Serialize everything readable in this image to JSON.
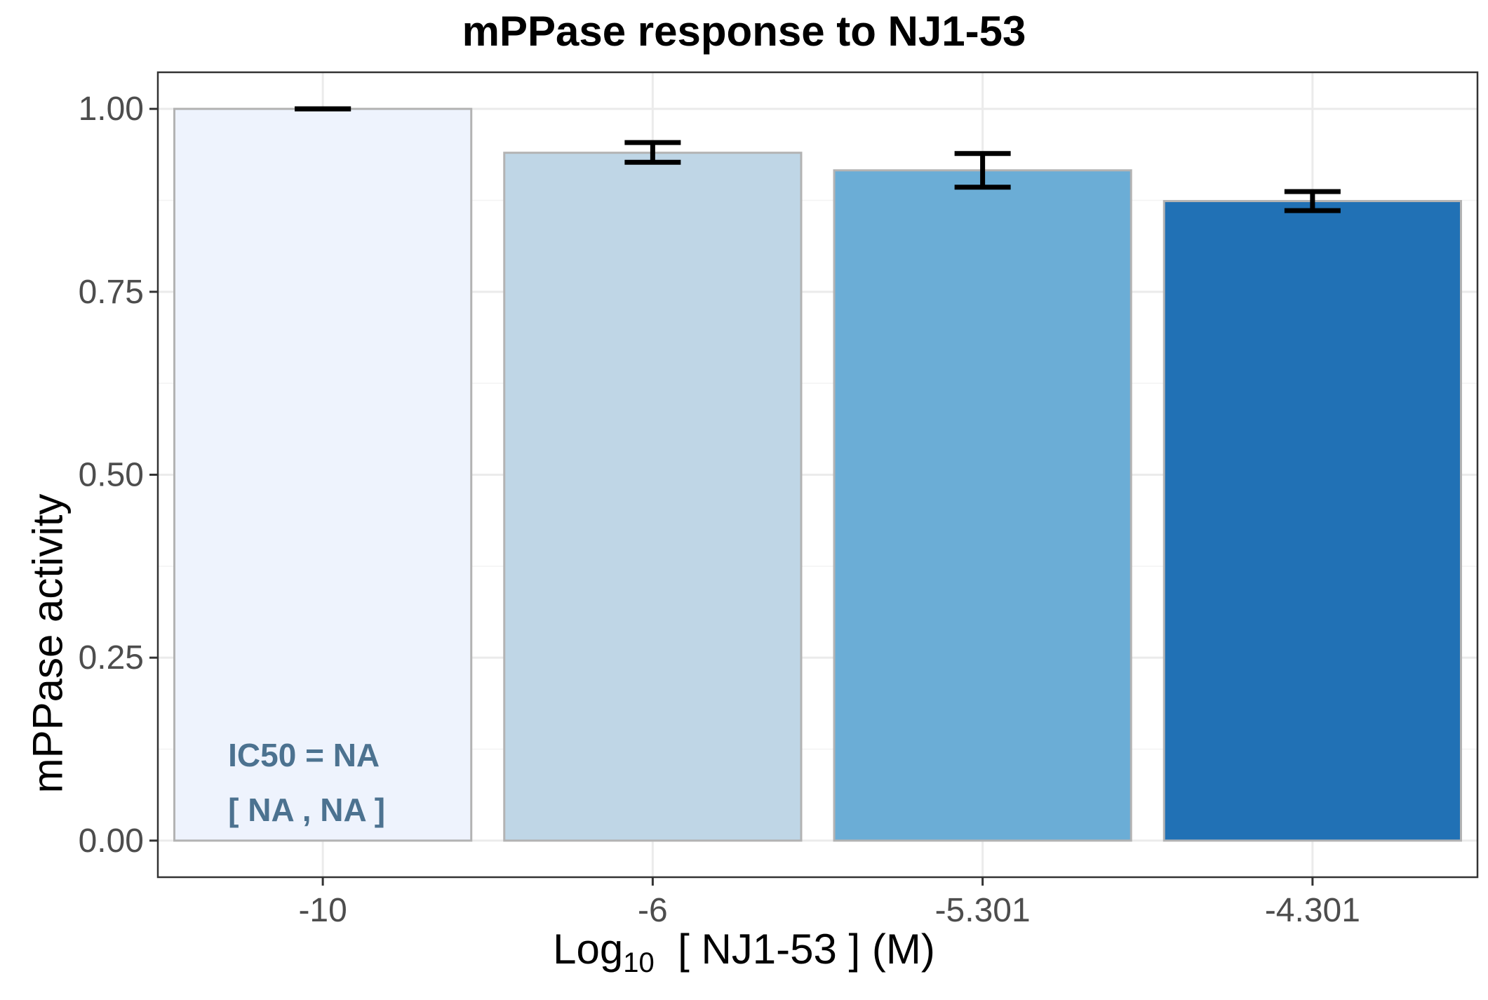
{
  "chart_data": {
    "type": "bar",
    "title": "mPPase response to NJ1-53",
    "xlabel": {
      "prefix": "Log",
      "subscript": "10",
      "suffix": "  [ NJ1-53 ] (M)"
    },
    "ylabel": "mPPase activity",
    "categories": [
      "-10",
      "-6",
      "-5.301",
      "-4.301"
    ],
    "values": [
      1.0,
      0.94,
      0.916,
      0.874
    ],
    "error_low": [
      1.0,
      0.927,
      0.893,
      0.861
    ],
    "error_high": [
      1.0,
      0.954,
      0.939,
      0.887
    ],
    "bar_colors": [
      "#eef3fd",
      "#bfd6e6",
      "#6badd6",
      "#2171b5"
    ],
    "bar_outline": "#b3b3b3",
    "ylim": [
      -0.05,
      1.05
    ],
    "yticks": [
      "0.00",
      "0.25",
      "0.50",
      "0.75",
      "1.00"
    ],
    "ytick_values": [
      0,
      0.25,
      0.5,
      0.75,
      1.0
    ],
    "grid": true,
    "annotation": {
      "lines": [
        "IC50 = NA",
        "[ NA , NA ]"
      ],
      "color": "#4c7290"
    }
  }
}
